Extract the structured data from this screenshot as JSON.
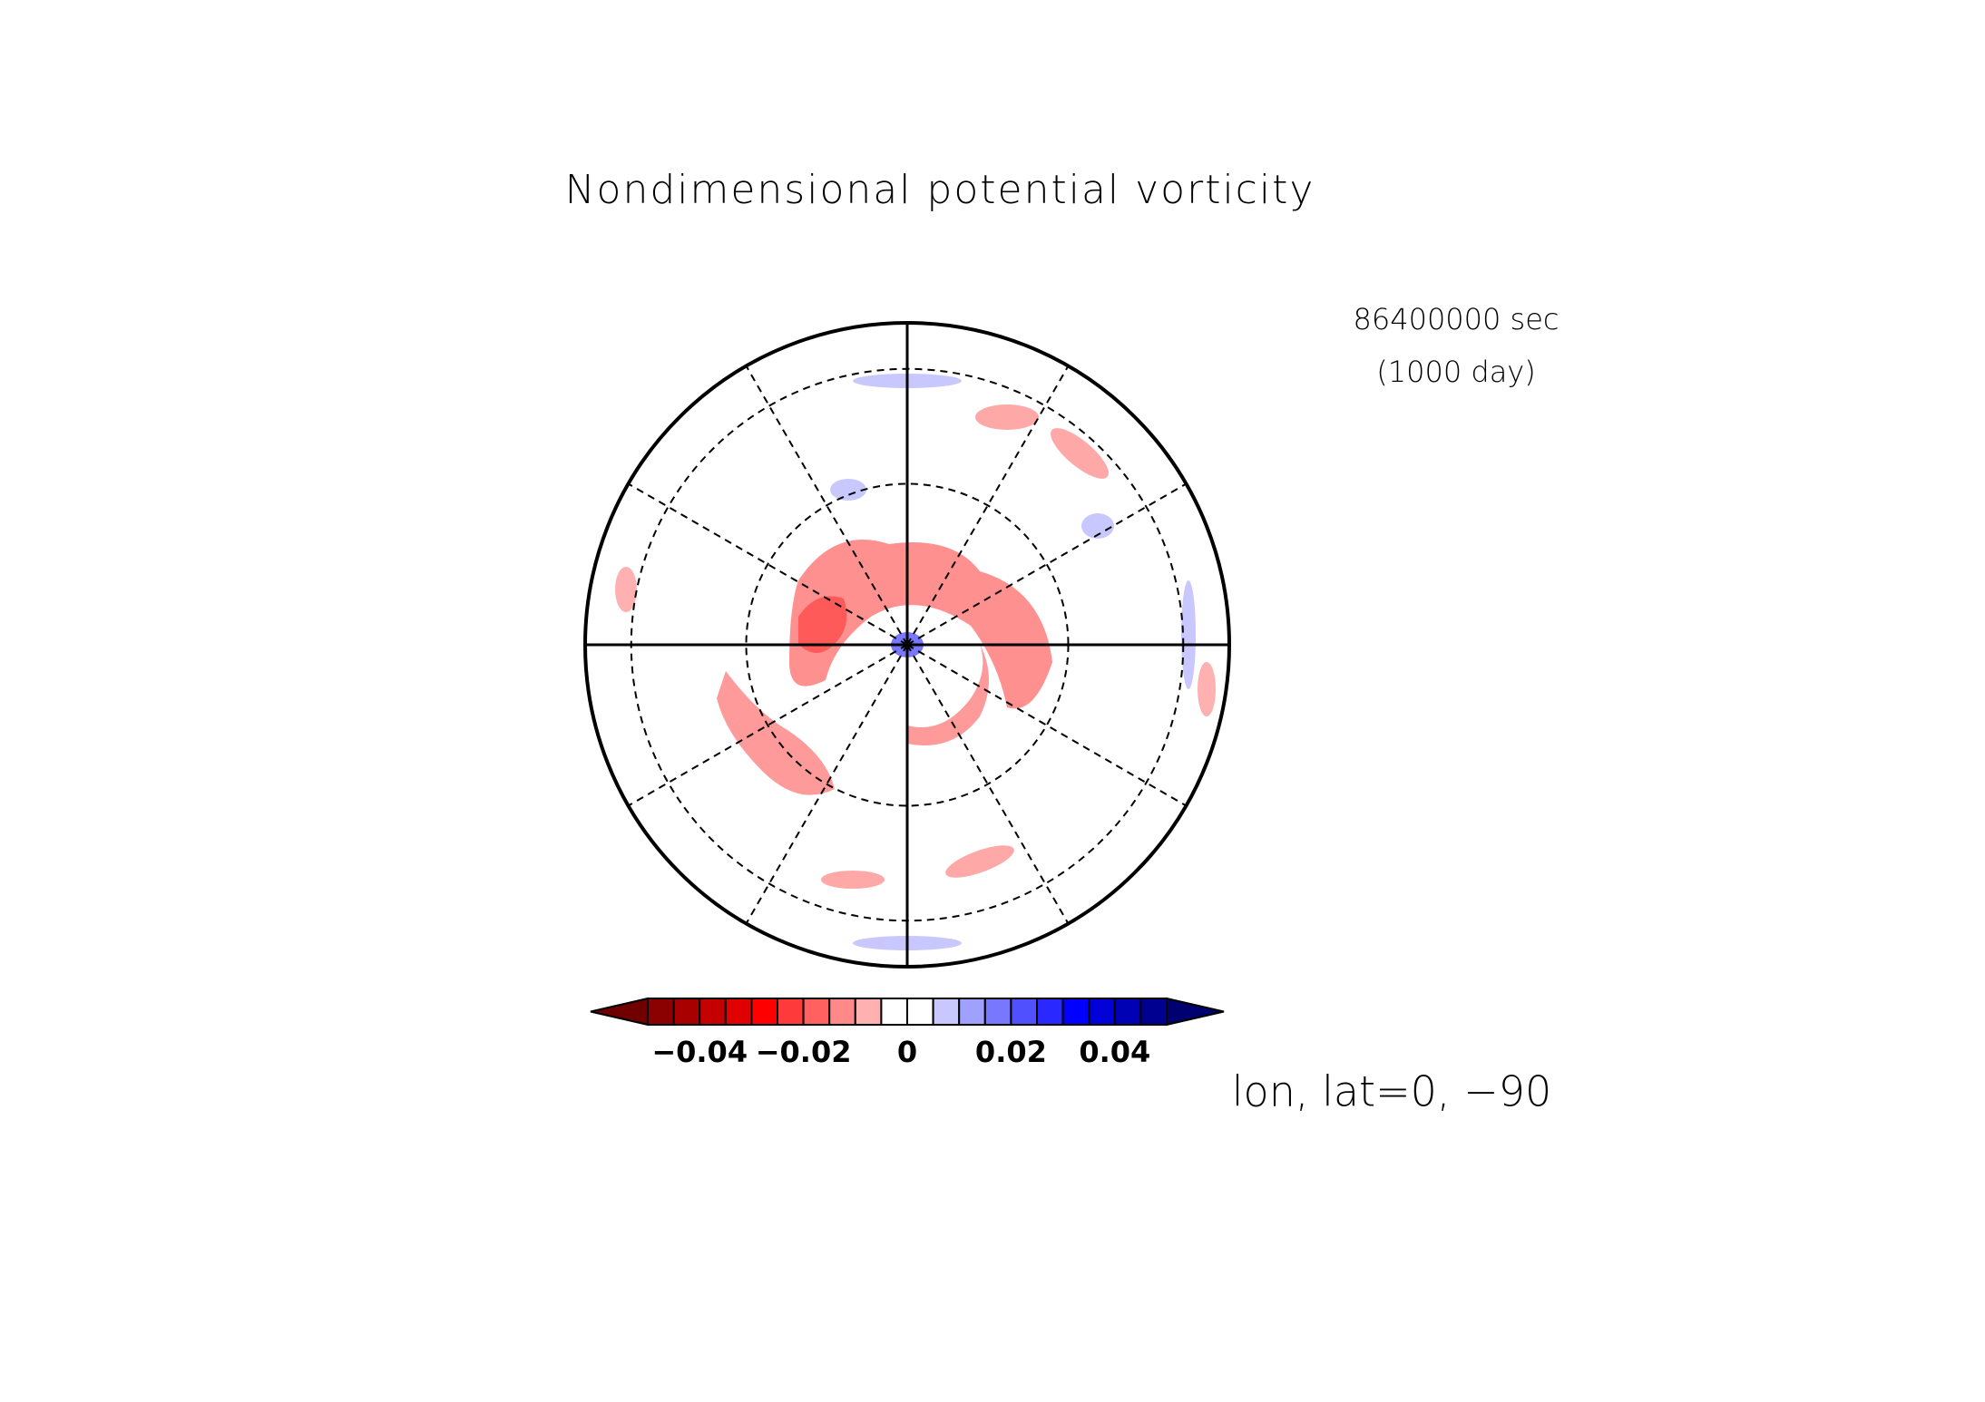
{
  "chart_data": {
    "type": "colorbar",
    "title": "Nondimensional potential vorticity",
    "time_label": "86400000 sec",
    "time_sub_label": "(1000 day)",
    "footer": "lon, lat=0, −90",
    "bins": [
      -0.05,
      -0.045,
      -0.04,
      -0.035,
      -0.03,
      -0.025,
      -0.02,
      -0.015,
      -0.01,
      -0.005,
      0,
      0.005,
      0.01,
      0.015,
      0.02,
      0.025,
      0.03,
      0.035,
      0.04,
      0.045,
      0.05
    ],
    "colors": [
      "#8b0000",
      "#a80000",
      "#c40000",
      "#e00000",
      "#ff0000",
      "#ff3a3a",
      "#ff6060",
      "#ff8888",
      "#ffb0b0",
      "#ffffff",
      "#ffffff",
      "#c8c8ff",
      "#a0a0ff",
      "#7878ff",
      "#5050ff",
      "#2828ff",
      "#0000ff",
      "#0000d8",
      "#0000b4",
      "#000090"
    ],
    "under_color": "#700000",
    "over_color": "#000070",
    "xlim": [
      -0.05,
      0.05
    ],
    "xticks": [
      {
        "value": -0.04,
        "label": "−0.04"
      },
      {
        "value": -0.02,
        "label": "−0.02"
      },
      0,
      0.02,
      0.04
    ]
  }
}
